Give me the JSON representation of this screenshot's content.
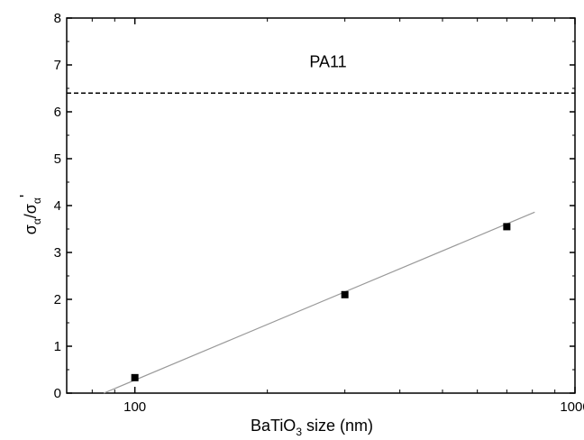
{
  "chart_data": {
    "type": "scatter",
    "x_scale": "log",
    "xlim": [
      70,
      1000
    ],
    "ylim": [
      0,
      8
    ],
    "xticks": [
      100,
      1000
    ],
    "x_tick_labels": [
      "100",
      "1000"
    ],
    "yticks": [
      0,
      1,
      2,
      3,
      4,
      5,
      6,
      7,
      8
    ],
    "y_tick_labels": [
      "0",
      "1",
      "2",
      "3",
      "4",
      "5",
      "6",
      "7",
      "8"
    ],
    "xlabel": {
      "base": "BaTiO",
      "sub": "3",
      "rest": " size (nm)"
    },
    "ylabel": {
      "sym1": "σ",
      "sub1": "α",
      "sep": "/",
      "sym2": "σ",
      "sub2": "α",
      "prime": "'"
    },
    "grid": false,
    "series": [
      {
        "points": [
          {
            "x": 100,
            "y": 0.33
          },
          {
            "x": 300,
            "y": 2.1
          },
          {
            "x": 700,
            "y": 3.55
          }
        ],
        "marker": "square",
        "color": "#000000"
      }
    ],
    "fit_line": {
      "x": [
        85,
        810
      ],
      "y": [
        0.0,
        3.86
      ],
      "color": "#999999"
    },
    "reference_line": {
      "y": 6.4,
      "label": "PA11",
      "style": "dashed",
      "color": "#000000"
    }
  }
}
